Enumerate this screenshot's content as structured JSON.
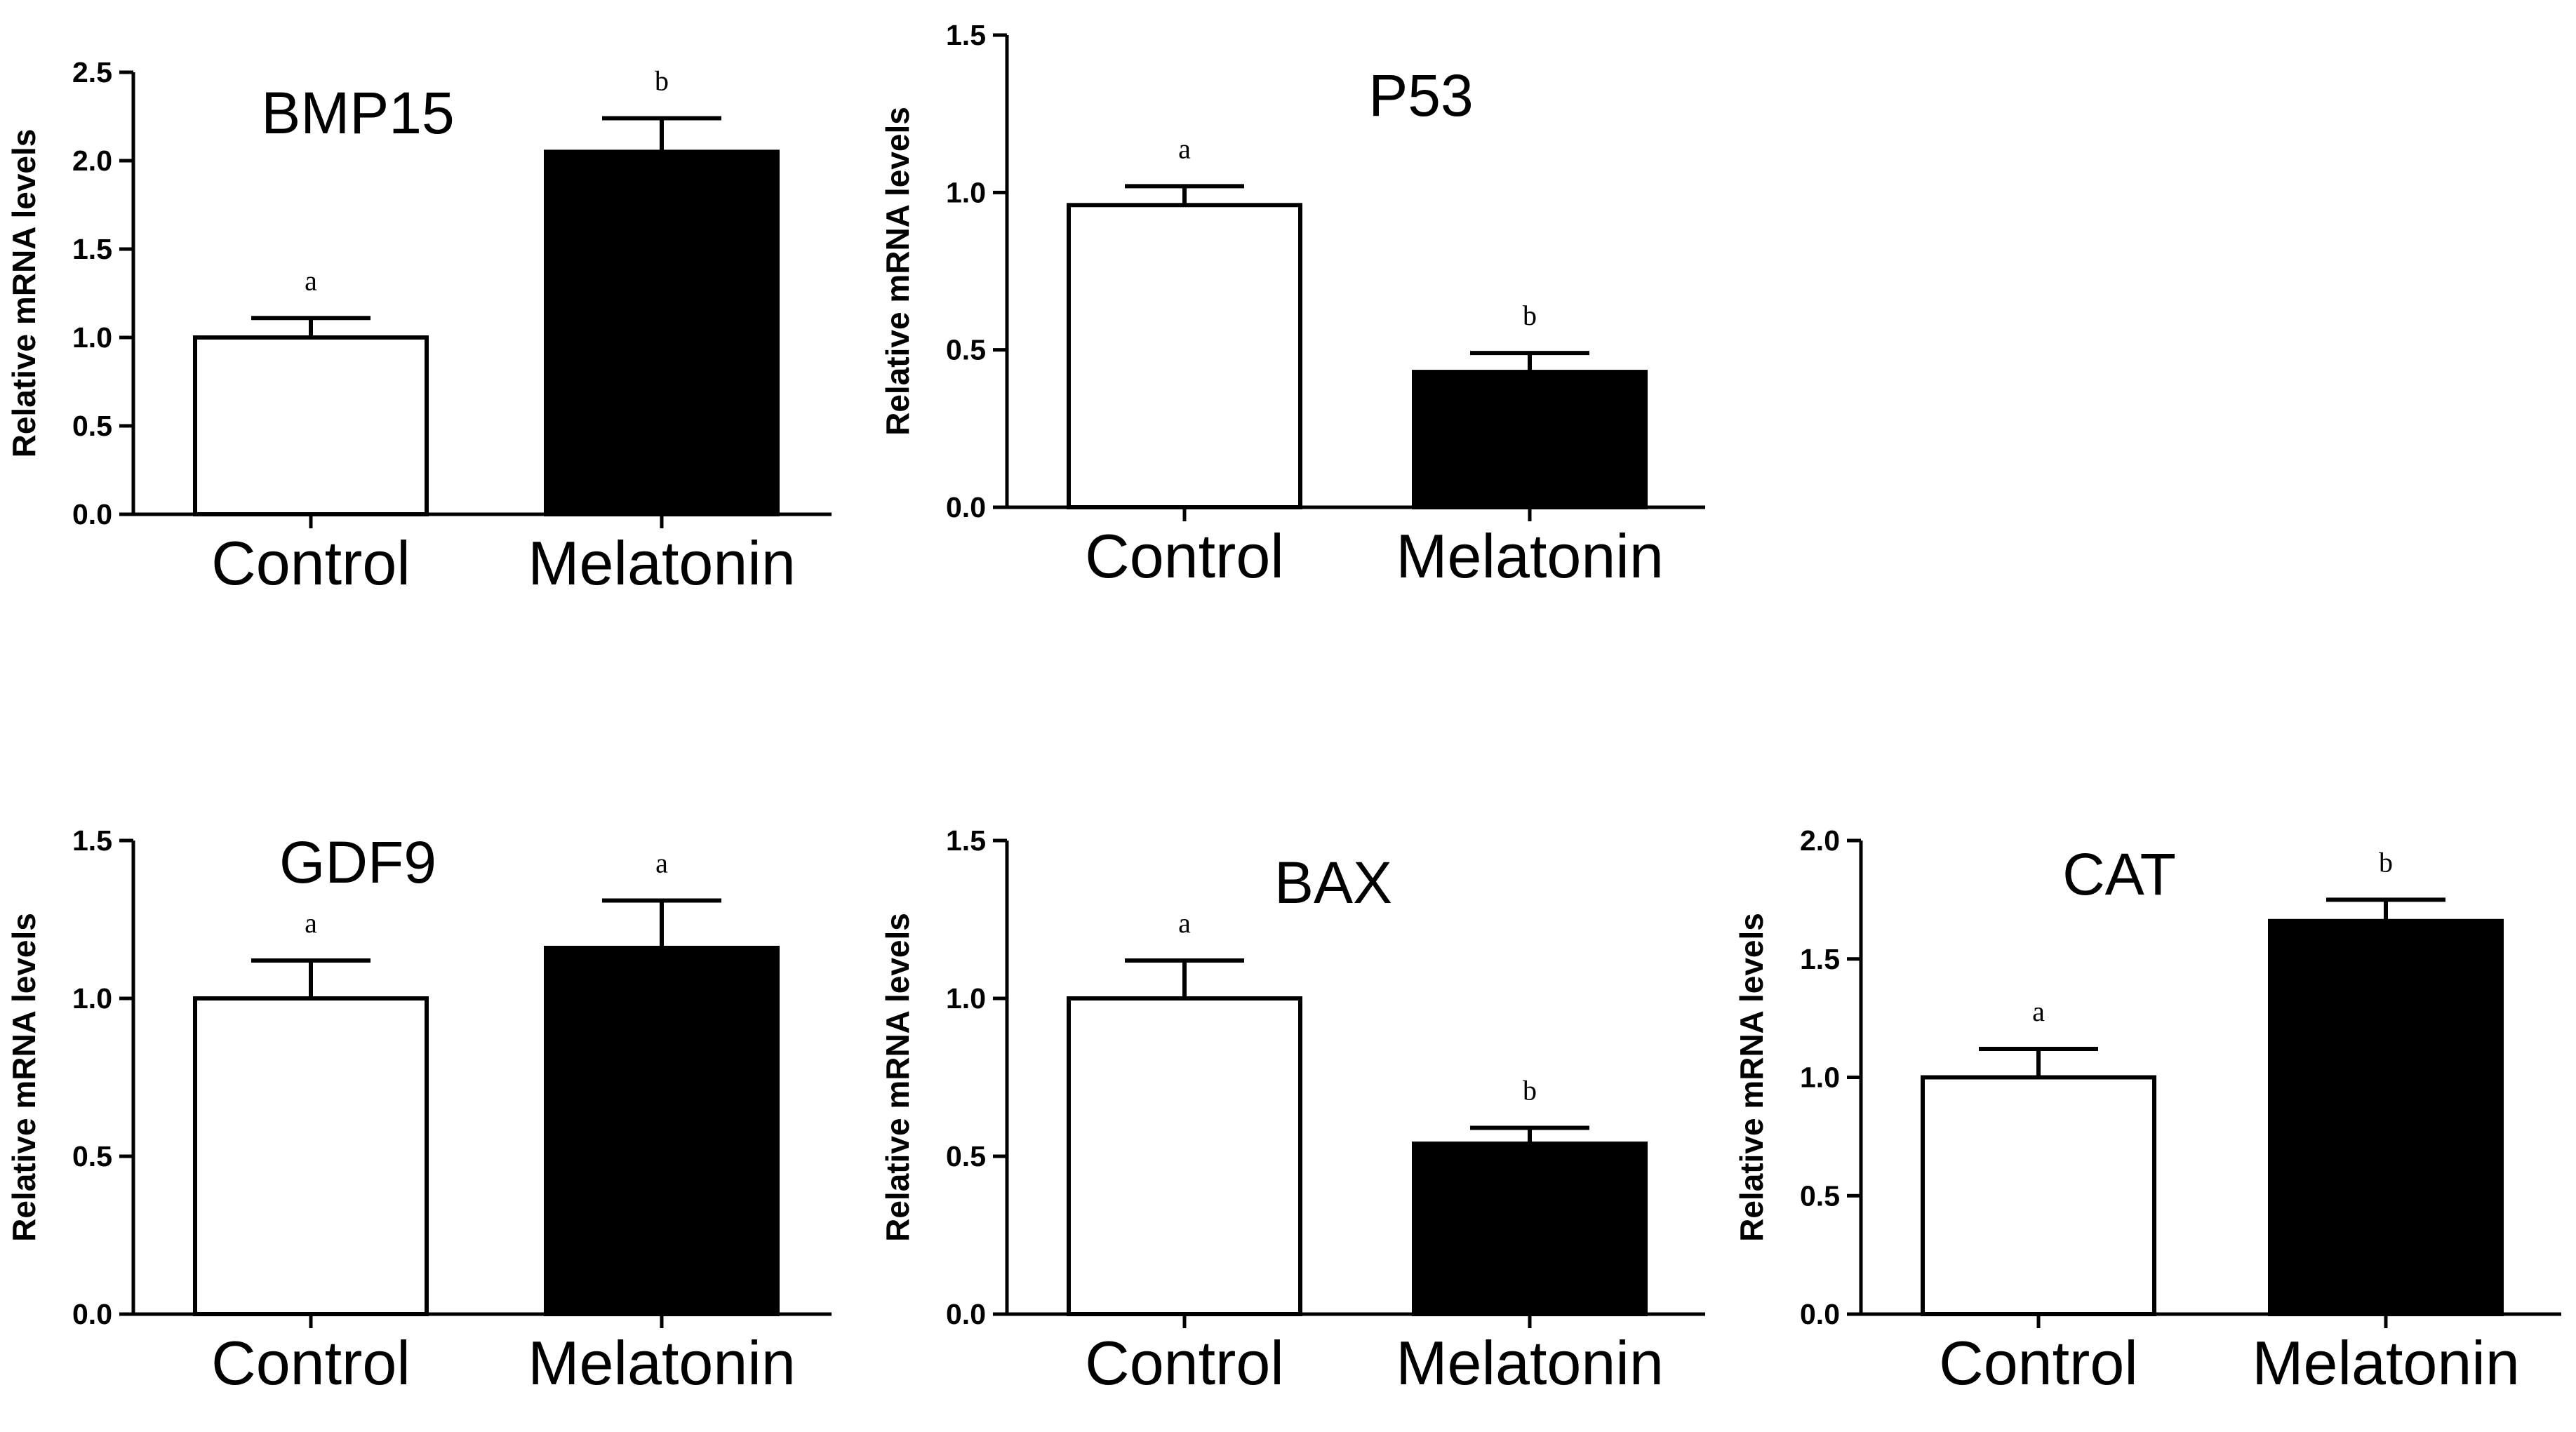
{
  "chart_data": [
    {
      "type": "bar",
      "title": "BMP15",
      "ylabel": "Relative mRNA levels",
      "categories": [
        "Control",
        "Melatonin"
      ],
      "values": [
        1.0,
        2.05
      ],
      "errors": [
        0.11,
        0.19
      ],
      "significance": [
        "a",
        "b"
      ],
      "bar_colors": [
        "#ffffff",
        "#000000"
      ],
      "ylim": [
        0,
        2.5
      ],
      "yticks": [
        "0.0",
        "0.5",
        "1.0",
        "1.5",
        "2.0",
        "2.5"
      ]
    },
    {
      "type": "bar",
      "title": "P53",
      "ylabel": "Relative mRNA levels",
      "categories": [
        "Control",
        "Melatonin"
      ],
      "values": [
        0.96,
        0.43
      ],
      "errors": [
        0.06,
        0.06
      ],
      "significance": [
        "a",
        "b"
      ],
      "bar_colors": [
        "#ffffff",
        "#000000"
      ],
      "ylim": [
        0,
        1.5
      ],
      "yticks": [
        "0.0",
        "0.5",
        "1.0",
        "1.5"
      ]
    },
    {
      "type": "bar",
      "title": "GDF9",
      "ylabel": "Relative mRNA levels",
      "categories": [
        "Control",
        "Melatonin"
      ],
      "values": [
        1.0,
        1.16
      ],
      "errors": [
        0.12,
        0.15
      ],
      "significance": [
        "a",
        "a"
      ],
      "bar_colors": [
        "#ffffff",
        "#000000"
      ],
      "ylim": [
        0,
        1.5
      ],
      "yticks": [
        "0.0",
        "0.5",
        "1.0",
        "1.5"
      ]
    },
    {
      "type": "bar",
      "title": "BAX",
      "ylabel": "Relative mRNA levels",
      "categories": [
        "Control",
        "Melatonin"
      ],
      "values": [
        1.0,
        0.54
      ],
      "errors": [
        0.12,
        0.05
      ],
      "significance": [
        "a",
        "b"
      ],
      "bar_colors": [
        "#ffffff",
        "#000000"
      ],
      "ylim": [
        0,
        1.5
      ],
      "yticks": [
        "0.0",
        "0.5",
        "1.0",
        "1.5"
      ]
    },
    {
      "type": "bar",
      "title": "CAT",
      "ylabel": "Relative mRNA levels",
      "categories": [
        "Control",
        "Melatonin"
      ],
      "values": [
        1.0,
        1.66
      ],
      "errors": [
        0.12,
        0.09
      ],
      "significance": [
        "a",
        "b"
      ],
      "bar_colors": [
        "#ffffff",
        "#000000"
      ],
      "ylim": [
        0,
        2.0
      ],
      "yticks": [
        "0.0",
        "0.5",
        "1.0",
        "1.5",
        "2.0"
      ]
    }
  ]
}
